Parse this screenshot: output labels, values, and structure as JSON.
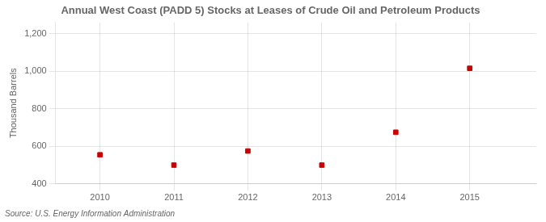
{
  "chart_data": {
    "type": "scatter",
    "title": "Annual West Coast (PADD 5) Stocks at Leases of Crude Oil and Petroleum Products",
    "ylabel": "Thousand Barrels",
    "source": "Source: U.S. Energy Information Administration",
    "x": [
      2010,
      2011,
      2012,
      2013,
      2014,
      2015
    ],
    "values": [
      555,
      500,
      575,
      500,
      675,
      1015
    ],
    "color": "#cc0000",
    "marker": "square",
    "xlim": [
      2009.4,
      2015.9
    ],
    "xticks": [
      2010,
      2011,
      2012,
      2013,
      2014,
      2015
    ],
    "ylim": [
      400,
      1260
    ],
    "yticks": [
      400,
      600,
      800,
      {
        "value": 1000,
        "label": "1,000"
      },
      {
        "value": 1200,
        "label": "1,200"
      }
    ],
    "grid": true
  }
}
